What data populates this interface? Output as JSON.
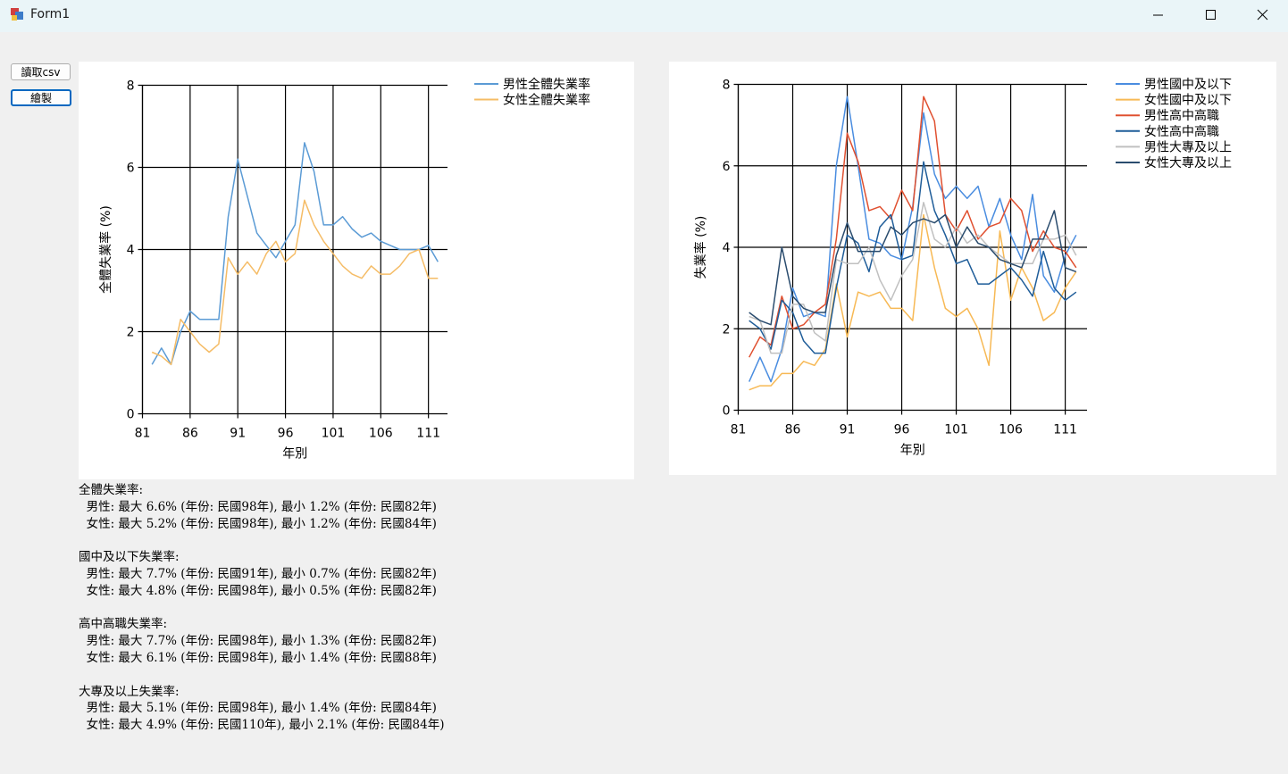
{
  "window": {
    "title": "Form1"
  },
  "buttons": {
    "read_csv": "讀取csv",
    "draw": "繪製"
  },
  "chart_data": [
    {
      "type": "line",
      "ylabel": "全體失業率 (%)",
      "xlabel": "年別",
      "xlim": [
        81,
        113
      ],
      "ylim": [
        0,
        8
      ],
      "xticks": [
        "81",
        "86",
        "91",
        "96",
        "101",
        "106",
        "111"
      ],
      "yticks": [
        "0",
        "2",
        "4",
        "6",
        "8"
      ],
      "grid": true,
      "legend": "top-right, outside plot",
      "x": [
        82,
        83,
        84,
        85,
        86,
        87,
        88,
        89,
        90,
        91,
        92,
        93,
        94,
        95,
        96,
        97,
        98,
        99,
        100,
        101,
        102,
        103,
        104,
        105,
        106,
        107,
        108,
        109,
        110,
        111,
        112
      ],
      "series": [
        {
          "name": "男性全體失業率",
          "color": "#5b9bd5",
          "values": [
            1.2,
            1.6,
            1.2,
            2.0,
            2.5,
            2.3,
            2.3,
            2.3,
            4.8,
            6.2,
            5.3,
            4.4,
            4.1,
            3.8,
            4.2,
            4.6,
            6.6,
            5.9,
            4.6,
            4.6,
            4.8,
            4.5,
            4.3,
            4.4,
            4.2,
            4.1,
            4.0,
            4.0,
            4.0,
            4.1,
            3.7
          ]
        },
        {
          "name": "女性全體失業率",
          "color": "#f5bc66",
          "values": [
            1.5,
            1.4,
            1.2,
            2.3,
            2.0,
            1.7,
            1.5,
            1.7,
            3.8,
            3.4,
            3.7,
            3.4,
            3.9,
            4.2,
            3.7,
            3.9,
            5.2,
            4.6,
            4.2,
            3.9,
            3.6,
            3.4,
            3.3,
            3.6,
            3.4,
            3.4,
            3.6,
            3.9,
            4.0,
            3.3,
            3.3
          ]
        }
      ]
    },
    {
      "type": "line",
      "ylabel": "失業率 (%)",
      "xlabel": "年別",
      "xlim": [
        81,
        113
      ],
      "ylim": [
        0,
        8
      ],
      "xticks": [
        "81",
        "86",
        "91",
        "96",
        "101",
        "106",
        "111"
      ],
      "yticks": [
        "0",
        "2",
        "4",
        "6",
        "8"
      ],
      "grid": true,
      "legend": "top-right, outside plot",
      "x": [
        82,
        83,
        84,
        85,
        86,
        87,
        88,
        89,
        90,
        91,
        92,
        93,
        94,
        95,
        96,
        97,
        98,
        99,
        100,
        101,
        102,
        103,
        104,
        105,
        106,
        107,
        108,
        109,
        110,
        111,
        112
      ],
      "series": [
        {
          "name": "男性國中及以下",
          "color": "#4a8de0",
          "values": [
            0.7,
            1.3,
            0.7,
            1.5,
            3.0,
            2.3,
            2.4,
            2.3,
            6.0,
            7.7,
            6.0,
            4.2,
            4.1,
            3.8,
            3.7,
            5.0,
            7.3,
            5.8,
            5.2,
            5.5,
            5.2,
            5.5,
            4.5,
            5.2,
            4.3,
            3.7,
            5.3,
            3.3,
            2.9,
            3.8,
            4.3
          ]
        },
        {
          "name": "女性國中及以下",
          "color": "#f7b955",
          "values": [
            0.5,
            0.6,
            0.6,
            0.9,
            0.9,
            1.2,
            1.1,
            1.5,
            3.1,
            1.8,
            2.9,
            2.8,
            2.9,
            2.5,
            2.5,
            2.2,
            4.8,
            3.5,
            2.5,
            2.3,
            2.5,
            2.0,
            1.1,
            4.4,
            2.7,
            3.5,
            3.0,
            2.2,
            2.4,
            3.0,
            3.4
          ]
        },
        {
          "name": "男性高中高職",
          "color": "#e05030",
          "values": [
            1.3,
            1.8,
            1.6,
            2.8,
            2.0,
            2.1,
            2.4,
            2.6,
            4.2,
            6.8,
            6.1,
            4.9,
            5.0,
            4.7,
            5.4,
            4.9,
            7.7,
            7.1,
            4.8,
            4.4,
            4.9,
            4.2,
            4.5,
            4.6,
            5.2,
            4.9,
            3.9,
            4.4,
            4.0,
            3.9,
            3.5
          ]
        },
        {
          "name": "女性高中高職",
          "color": "#1f5d99",
          "values": [
            2.2,
            2.0,
            1.5,
            2.7,
            2.4,
            1.7,
            1.4,
            1.4,
            3.0,
            4.3,
            4.1,
            3.4,
            4.5,
            4.8,
            3.7,
            3.8,
            6.1,
            4.9,
            4.3,
            3.6,
            3.7,
            3.1,
            3.1,
            3.3,
            3.5,
            3.2,
            2.8,
            3.9,
            3.0,
            2.7,
            2.9
          ]
        },
        {
          "name": "男性大專及以上",
          "color": "#c0c0c0",
          "values": [
            2.3,
            2.2,
            1.4,
            1.4,
            2.6,
            2.6,
            1.9,
            1.7,
            3.7,
            3.6,
            3.6,
            4.0,
            3.2,
            2.7,
            3.3,
            3.7,
            5.1,
            4.2,
            4.0,
            4.5,
            4.1,
            4.3,
            4.0,
            3.8,
            3.6,
            3.6,
            3.6,
            4.2,
            4.2,
            4.3,
            3.8
          ]
        },
        {
          "name": "女性大專及以上",
          "color": "#2a4c6e",
          "values": [
            2.4,
            2.2,
            2.1,
            4.0,
            2.8,
            2.5,
            2.4,
            2.4,
            3.8,
            4.6,
            3.9,
            3.9,
            3.9,
            4.5,
            4.3,
            4.6,
            4.7,
            4.6,
            4.8,
            4.0,
            4.5,
            4.1,
            4.0,
            3.7,
            3.6,
            3.5,
            4.2,
            4.2,
            4.9,
            3.5,
            3.4
          ]
        }
      ]
    }
  ],
  "stats": [
    {
      "heading": "全體失業率:",
      "lines": [
        "  男性: 最大 6.6% (年份: 民國98年), 最小 1.2% (年份: 民國82年)",
        "  女性: 最大 5.2% (年份: 民國98年), 最小 1.2% (年份: 民國84年)"
      ]
    },
    {
      "heading": "國中及以下失業率:",
      "lines": [
        "  男性: 最大 7.7% (年份: 民國91年), 最小 0.7% (年份: 民國82年)",
        "  女性: 最大 4.8% (年份: 民國98年), 最小 0.5% (年份: 民國82年)"
      ]
    },
    {
      "heading": "高中高職失業率:",
      "lines": [
        "  男性: 最大 7.7% (年份: 民國98年), 最小 1.3% (年份: 民國82年)",
        "  女性: 最大 6.1% (年份: 民國98年), 最小 1.4% (年份: 民國88年)"
      ]
    },
    {
      "heading": "大專及以上失業率:",
      "lines": [
        "  男性: 最大 5.1% (年份: 民國98年), 最小 1.4% (年份: 民國84年)",
        "  女性: 最大 4.9% (年份: 民國110年), 最小 2.1% (年份: 民國84年)"
      ]
    }
  ]
}
